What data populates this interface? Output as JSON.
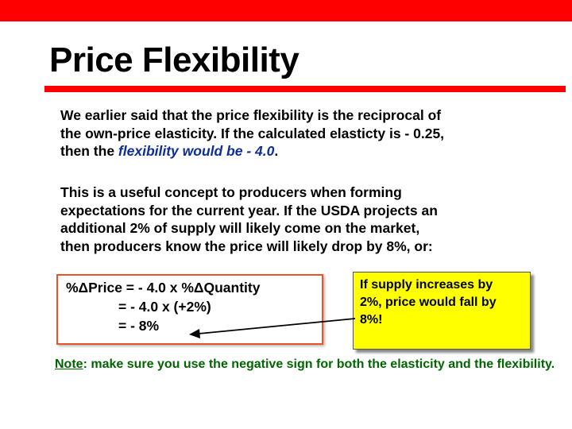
{
  "slide": {
    "title": "Price Flexibility",
    "colors": {
      "accent": "#ff0000",
      "highlight_text": "#0d2d99",
      "note_box": "#ffff00",
      "note_text": "#006600",
      "eq_border": "#e8542a"
    },
    "para1": {
      "line1": "We earlier said that the price flexibility is the reciprocal of",
      "line2": "the own-price elasticity.  If the calculated elasticty is - 0.25,",
      "line3_prefix": "then the ",
      "line3_highlight": "flexibility would be - 4.0",
      "line3_suffix": "."
    },
    "para2": {
      "line1": "This is a useful concept to producers when forming",
      "line2": "expectations for the current year. If the USDA projects an",
      "line3": "additional  2% of supply will likely come on the market,",
      "line4": "then producers know the price will likely drop by 8%, or:"
    },
    "equation": {
      "line1": "%ΔPrice = - 4.0 x %ΔQuantity",
      "line2": "= - 4.0 x (+2%)",
      "line3": "= - 8%"
    },
    "callout": {
      "line1": "If supply increases by",
      "line2": "2%, price would fall by",
      "line3": "8%!"
    },
    "note": {
      "label": "Note",
      "text": ": make sure you use the negative sign for both the elasticity and the flexibility."
    }
  }
}
